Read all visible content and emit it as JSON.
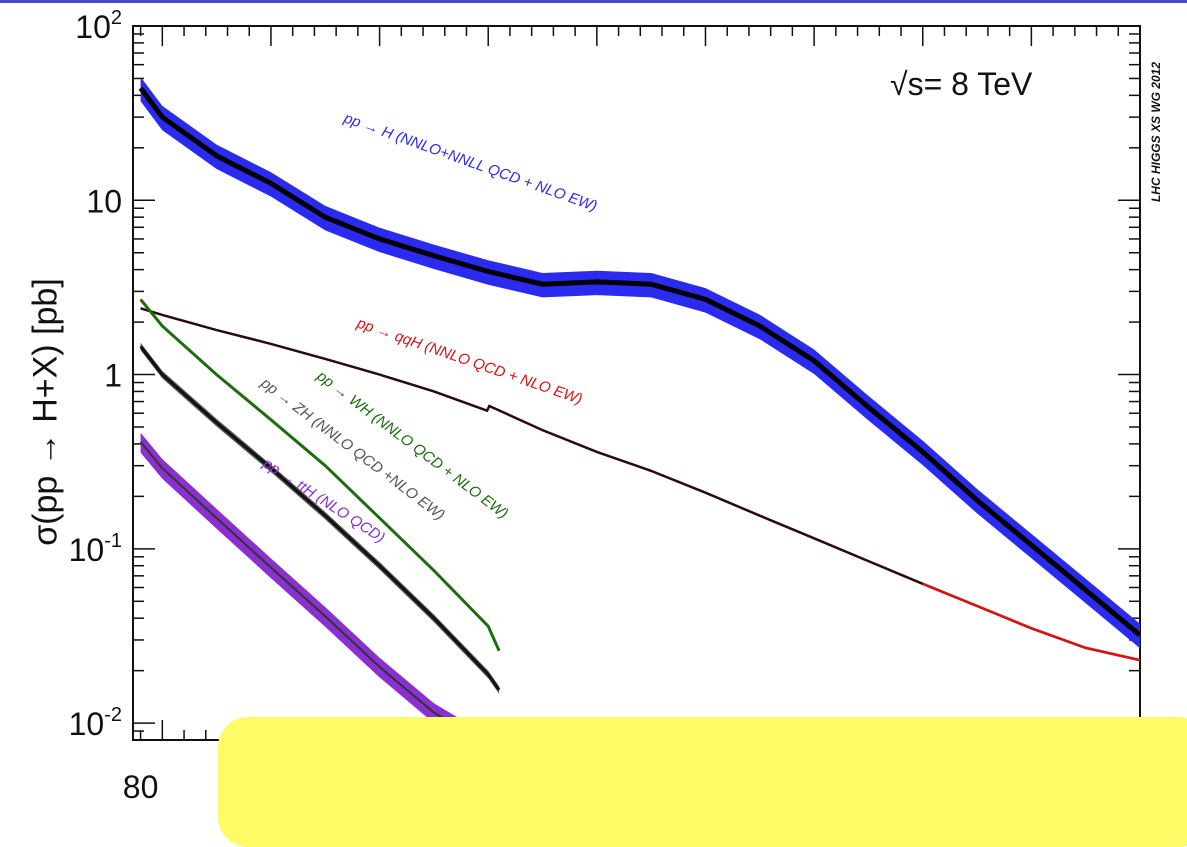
{
  "colors": {
    "top_rule": "#4a4ad0",
    "overlay": "#fffb66",
    "ggH": "#2b2bf0",
    "qqH": "#e01010",
    "WH": "#1d6d0f",
    "ZH": "#555555",
    "ttH": "#8a2fd0"
  },
  "chart_data": {
    "type": "line",
    "title": "",
    "ylabel": "σ(pp → H+X) [pb]",
    "xlabel": "",
    "yscale": "log",
    "ylim": [
      0.008,
      100
    ],
    "xlim": [
      73,
      1000
    ],
    "y_tick_labels": [
      "10-2",
      "10-1",
      "1",
      "10",
      "102"
    ],
    "x_tick_labels": [
      "80"
    ],
    "energy_label": "√s= 8 TeV",
    "watermark": "LHC HIGGS XS WG 2012",
    "series": [
      {
        "name": "pp → H (NNLO+NNLL QCD + NLO EW)",
        "key": "ggH",
        "band": true,
        "x": [
          80,
          100,
          150,
          200,
          250,
          300,
          350,
          400,
          450,
          500,
          550,
          600,
          650,
          700,
          750,
          800,
          850,
          900,
          950,
          1000
        ],
        "y": [
          44,
          30,
          18,
          12.5,
          8,
          6,
          4.8,
          3.9,
          3.3,
          3.4,
          3.3,
          2.7,
          1.9,
          1.2,
          0.65,
          0.36,
          0.19,
          0.105,
          0.058,
          0.032
        ],
        "band_rel": 0.16
      },
      {
        "name": "pp → qqH (NNLO QCD + NLO EW)",
        "key": "qqH",
        "band": false,
        "x": [
          80,
          100,
          150,
          200,
          250,
          300,
          350,
          399,
          401,
          450,
          500,
          550,
          600,
          650,
          700,
          750,
          800,
          850,
          900,
          950,
          1000
        ],
        "y": [
          2.4,
          2.2,
          1.8,
          1.5,
          1.23,
          1.0,
          0.8,
          0.62,
          0.66,
          0.48,
          0.36,
          0.28,
          0.21,
          0.155,
          0.115,
          0.085,
          0.063,
          0.047,
          0.035,
          0.027,
          0.023
        ],
        "band_rel": 0.0
      },
      {
        "name": "pp → WH (NNLO QCD + NLO EW)",
        "key": "WH",
        "band": false,
        "x": [
          80,
          100,
          150,
          200,
          250,
          300,
          350,
          400,
          410
        ],
        "y": [
          2.7,
          1.9,
          1.0,
          0.55,
          0.3,
          0.15,
          0.075,
          0.036,
          0.026
        ],
        "band_rel": 0.0
      },
      {
        "name": "pp → ZH (NNLO QCD +NLO EW)",
        "key": "ZH",
        "band": true,
        "x": [
          80,
          100,
          150,
          200,
          250,
          300,
          350,
          400,
          410
        ],
        "y": [
          1.45,
          1.0,
          0.53,
          0.29,
          0.155,
          0.08,
          0.04,
          0.019,
          0.0155
        ],
        "band_rel": 0.05
      },
      {
        "name": "pp → ttH (NLO QCD)",
        "key": "ttH",
        "band": true,
        "x": [
          80,
          100,
          150,
          200,
          250,
          300,
          350,
          400
        ],
        "y": [
          0.41,
          0.29,
          0.15,
          0.078,
          0.041,
          0.021,
          0.0115,
          0.0075
        ],
        "band_rel": 0.13
      }
    ],
    "annotations": [
      {
        "key": "ggH",
        "text": "pp → H (NNLO+NNLL QCD + NLO EW)",
        "x": 343,
        "y": 122,
        "angle": 19.5
      },
      {
        "key": "qqH",
        "text": "pp → qqH (NNLO QCD + NLO EW)",
        "x": 356,
        "y": 327,
        "angle": 19
      },
      {
        "key": "WH",
        "text": "pp → WH (NNLO QCD + NLO EW)",
        "x": 316,
        "y": 378,
        "angle": 37
      },
      {
        "key": "ZH",
        "text": "pp → ZH (NNLO QCD +NLO EW)",
        "x": 260,
        "y": 385,
        "angle": 37
      },
      {
        "key": "ttH",
        "text": "pp → ttH (NLO QCD)",
        "x": 262,
        "y": 466,
        "angle": 33
      }
    ]
  }
}
